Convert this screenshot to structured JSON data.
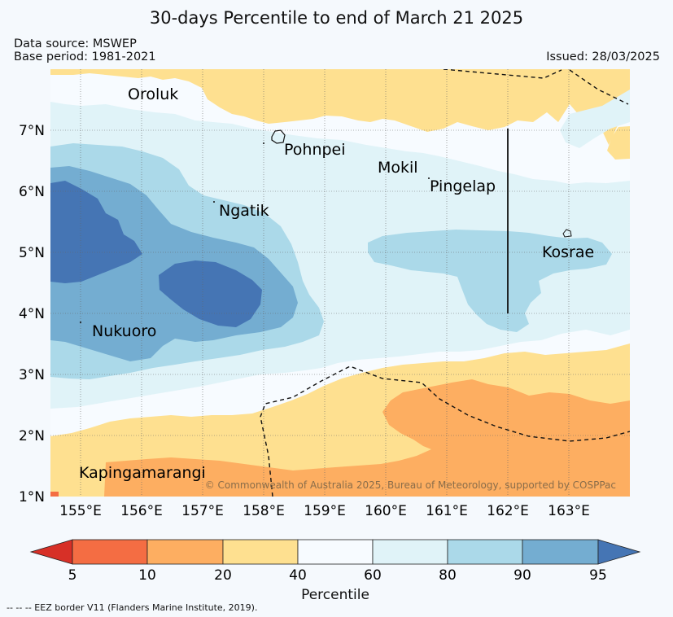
{
  "title": "30-days Percentile to end of March 21 2025",
  "data_source": "Data source: MSWEP",
  "base_period": "Base period: 1981-2021",
  "issued": "Issued: 28/03/2025",
  "copyright": "© Commonwealth of Australia 2025, Bureau of Meteorology, supported by COSPPac",
  "footnote": "-- -- -- EEZ border V11 (Flanders Marine Institute, 2019).",
  "map": {
    "lon_ticks": [
      "155°E",
      "156°E",
      "157°E",
      "158°E",
      "159°E",
      "160°E",
      "161°E",
      "162°E",
      "163°E"
    ],
    "lat_ticks": [
      "7°N",
      "6°N",
      "5°N",
      "4°N",
      "3°N",
      "2°N",
      "1°N"
    ],
    "places": [
      {
        "name": "Oroluk"
      },
      {
        "name": "Pohnpei"
      },
      {
        "name": "Mokil"
      },
      {
        "name": "Pingelap"
      },
      {
        "name": "Ngatik"
      },
      {
        "name": "Kosrae"
      },
      {
        "name": "Nukuoro"
      },
      {
        "name": "Kapingamarangi"
      }
    ]
  },
  "colorbar": {
    "label": "Percentile",
    "ticks": [
      "5",
      "10",
      "20",
      "40",
      "60",
      "80",
      "90",
      "95"
    ],
    "colors": [
      "#d73027",
      "#f46d43",
      "#fdae61",
      "#fee090",
      "#f7fbff",
      "#e0f3f8",
      "#abd9e9",
      "#74add1",
      "#4575b4"
    ]
  }
}
